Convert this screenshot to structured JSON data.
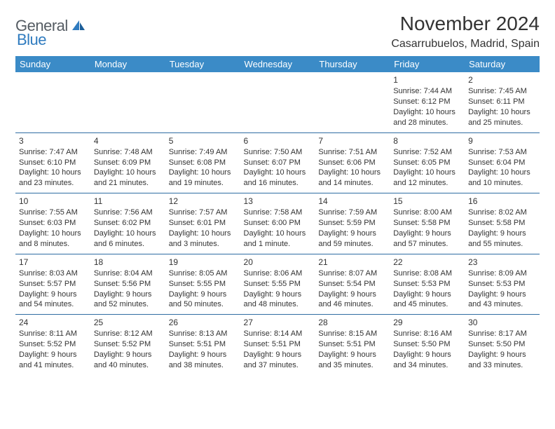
{
  "brand": {
    "part1": "General",
    "part2": "Blue"
  },
  "title": "November 2024",
  "location": "Casarrubuelos, Madrid, Spain",
  "header_bg": "#3b8bc7",
  "header_fg": "#ffffff",
  "row_border_color": "#2f6da3",
  "weekdays": [
    "Sunday",
    "Monday",
    "Tuesday",
    "Wednesday",
    "Thursday",
    "Friday",
    "Saturday"
  ],
  "weeks": [
    [
      null,
      null,
      null,
      null,
      null,
      {
        "n": "1",
        "sunrise": "7:44 AM",
        "sunset": "6:12 PM",
        "daylight": "10 hours and 28 minutes."
      },
      {
        "n": "2",
        "sunrise": "7:45 AM",
        "sunset": "6:11 PM",
        "daylight": "10 hours and 25 minutes."
      }
    ],
    [
      {
        "n": "3",
        "sunrise": "7:47 AM",
        "sunset": "6:10 PM",
        "daylight": "10 hours and 23 minutes."
      },
      {
        "n": "4",
        "sunrise": "7:48 AM",
        "sunset": "6:09 PM",
        "daylight": "10 hours and 21 minutes."
      },
      {
        "n": "5",
        "sunrise": "7:49 AM",
        "sunset": "6:08 PM",
        "daylight": "10 hours and 19 minutes."
      },
      {
        "n": "6",
        "sunrise": "7:50 AM",
        "sunset": "6:07 PM",
        "daylight": "10 hours and 16 minutes."
      },
      {
        "n": "7",
        "sunrise": "7:51 AM",
        "sunset": "6:06 PM",
        "daylight": "10 hours and 14 minutes."
      },
      {
        "n": "8",
        "sunrise": "7:52 AM",
        "sunset": "6:05 PM",
        "daylight": "10 hours and 12 minutes."
      },
      {
        "n": "9",
        "sunrise": "7:53 AM",
        "sunset": "6:04 PM",
        "daylight": "10 hours and 10 minutes."
      }
    ],
    [
      {
        "n": "10",
        "sunrise": "7:55 AM",
        "sunset": "6:03 PM",
        "daylight": "10 hours and 8 minutes."
      },
      {
        "n": "11",
        "sunrise": "7:56 AM",
        "sunset": "6:02 PM",
        "daylight": "10 hours and 6 minutes."
      },
      {
        "n": "12",
        "sunrise": "7:57 AM",
        "sunset": "6:01 PM",
        "daylight": "10 hours and 3 minutes."
      },
      {
        "n": "13",
        "sunrise": "7:58 AM",
        "sunset": "6:00 PM",
        "daylight": "10 hours and 1 minute."
      },
      {
        "n": "14",
        "sunrise": "7:59 AM",
        "sunset": "5:59 PM",
        "daylight": "9 hours and 59 minutes."
      },
      {
        "n": "15",
        "sunrise": "8:00 AM",
        "sunset": "5:58 PM",
        "daylight": "9 hours and 57 minutes."
      },
      {
        "n": "16",
        "sunrise": "8:02 AM",
        "sunset": "5:58 PM",
        "daylight": "9 hours and 55 minutes."
      }
    ],
    [
      {
        "n": "17",
        "sunrise": "8:03 AM",
        "sunset": "5:57 PM",
        "daylight": "9 hours and 54 minutes."
      },
      {
        "n": "18",
        "sunrise": "8:04 AM",
        "sunset": "5:56 PM",
        "daylight": "9 hours and 52 minutes."
      },
      {
        "n": "19",
        "sunrise": "8:05 AM",
        "sunset": "5:55 PM",
        "daylight": "9 hours and 50 minutes."
      },
      {
        "n": "20",
        "sunrise": "8:06 AM",
        "sunset": "5:55 PM",
        "daylight": "9 hours and 48 minutes."
      },
      {
        "n": "21",
        "sunrise": "8:07 AM",
        "sunset": "5:54 PM",
        "daylight": "9 hours and 46 minutes."
      },
      {
        "n": "22",
        "sunrise": "8:08 AM",
        "sunset": "5:53 PM",
        "daylight": "9 hours and 45 minutes."
      },
      {
        "n": "23",
        "sunrise": "8:09 AM",
        "sunset": "5:53 PM",
        "daylight": "9 hours and 43 minutes."
      }
    ],
    [
      {
        "n": "24",
        "sunrise": "8:11 AM",
        "sunset": "5:52 PM",
        "daylight": "9 hours and 41 minutes."
      },
      {
        "n": "25",
        "sunrise": "8:12 AM",
        "sunset": "5:52 PM",
        "daylight": "9 hours and 40 minutes."
      },
      {
        "n": "26",
        "sunrise": "8:13 AM",
        "sunset": "5:51 PM",
        "daylight": "9 hours and 38 minutes."
      },
      {
        "n": "27",
        "sunrise": "8:14 AM",
        "sunset": "5:51 PM",
        "daylight": "9 hours and 37 minutes."
      },
      {
        "n": "28",
        "sunrise": "8:15 AM",
        "sunset": "5:51 PM",
        "daylight": "9 hours and 35 minutes."
      },
      {
        "n": "29",
        "sunrise": "8:16 AM",
        "sunset": "5:50 PM",
        "daylight": "9 hours and 34 minutes."
      },
      {
        "n": "30",
        "sunrise": "8:17 AM",
        "sunset": "5:50 PM",
        "daylight": "9 hours and 33 minutes."
      }
    ]
  ],
  "labels": {
    "sunrise": "Sunrise:",
    "sunset": "Sunset:",
    "daylight": "Daylight:"
  }
}
